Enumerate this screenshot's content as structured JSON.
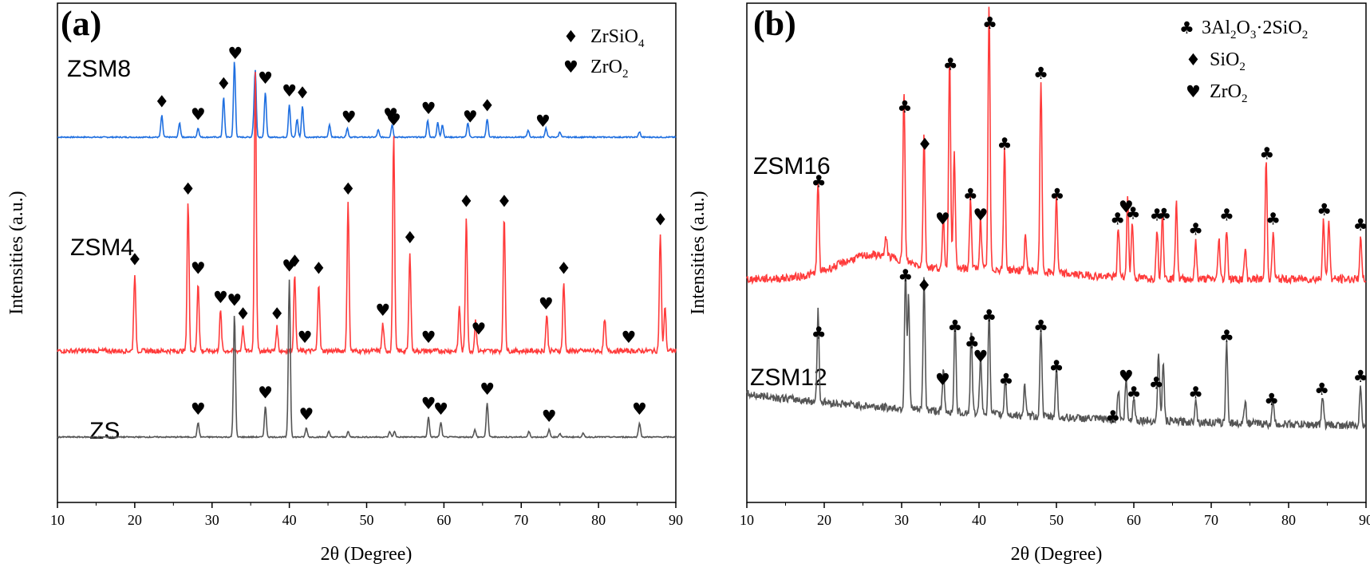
{
  "chart_data": [
    {
      "panel": "(a)",
      "type": "line",
      "xlabel": "2θ (Degree)",
      "ylabel": "Intensities (a.u.)",
      "xlim": [
        10,
        90
      ],
      "xticks": [
        "10",
        "20",
        "30",
        "40",
        "50",
        "60",
        "70",
        "80",
        "90"
      ],
      "legend": [
        {
          "marker": "♦",
          "label": "ZrSiO",
          "sub": "4"
        },
        {
          "marker": "♥",
          "label": "ZrO",
          "sub": "2"
        }
      ],
      "series": [
        {
          "name": "ZSM8",
          "color": "#1f6fe0",
          "baseline": 0.3,
          "peaks": [
            [
              23.5,
              0.12
            ],
            [
              25.8,
              0.08
            ],
            [
              28.2,
              0.05
            ],
            [
              31.5,
              0.22
            ],
            [
              32.9,
              0.42
            ],
            [
              35.4,
              0.07
            ],
            [
              35.6,
              0.35
            ],
            [
              36.9,
              0.25
            ],
            [
              40.0,
              0.18
            ],
            [
              41.0,
              0.1
            ],
            [
              41.7,
              0.17
            ],
            [
              45.2,
              0.07
            ],
            [
              47.5,
              0.05
            ],
            [
              51.5,
              0.04
            ],
            [
              53.3,
              0.07
            ],
            [
              57.9,
              0.09
            ],
            [
              59.2,
              0.08
            ],
            [
              59.8,
              0.07
            ],
            [
              63.1,
              0.08
            ],
            [
              65.6,
              0.1
            ],
            [
              70.9,
              0.04
            ],
            [
              73.2,
              0.05
            ],
            [
              75.0,
              0.03
            ],
            [
              85.3,
              0.03
            ]
          ],
          "markers": [
            [
              23.5,
              "♦",
              0.83
            ],
            [
              28.2,
              "♥",
              0.79
            ],
            [
              31.5,
              "♦",
              0.86
            ],
            [
              33.0,
              "♥",
              0.97
            ],
            [
              36.9,
              "♥",
              0.88
            ],
            [
              40.0,
              "♥",
              0.8
            ],
            [
              41.7,
              "♦",
              0.86
            ],
            [
              47.7,
              "♥",
              0.78
            ],
            [
              53.1,
              "♥",
              0.75
            ],
            [
              58.0,
              "♥",
              0.84
            ],
            [
              63.4,
              "♥",
              0.84
            ],
            [
              65.6,
              "♦",
              0.83
            ],
            [
              72.8,
              "♥",
              0.81
            ]
          ]
        },
        {
          "name": "ZSM4",
          "color": "#ff3b3b",
          "baseline": 1.3,
          "peaks": [
            [
              20.0,
              0.43
            ],
            [
              26.9,
              0.82
            ],
            [
              28.2,
              0.38
            ],
            [
              31.1,
              0.22
            ],
            [
              34.0,
              0.13
            ],
            [
              35.6,
              1.55
            ],
            [
              38.4,
              0.13
            ],
            [
              40.7,
              0.42
            ],
            [
              43.8,
              0.38
            ],
            [
              47.6,
              0.82
            ],
            [
              52.1,
              0.15
            ],
            [
              53.5,
              1.2
            ],
            [
              55.6,
              0.55
            ],
            [
              62.0,
              0.25
            ],
            [
              62.9,
              0.75
            ],
            [
              64.1,
              0.17
            ],
            [
              67.8,
              0.75
            ],
            [
              73.3,
              0.2
            ],
            [
              75.5,
              0.38
            ],
            [
              80.8,
              0.18
            ],
            [
              88.0,
              0.65
            ],
            [
              88.6,
              0.25
            ]
          ],
          "markers": [
            [
              20.0,
              "♦",
              0.81
            ],
            [
              26.9,
              "♦",
              0.74
            ],
            [
              28.2,
              "♥",
              0.8
            ],
            [
              31.1,
              "♥",
              0.82
            ],
            [
              34.0,
              "♦",
              0.83
            ],
            [
              38.4,
              "♦",
              0.83
            ],
            [
              40.7,
              "♦",
              0.81
            ],
            [
              42.0,
              "♥",
              0.79
            ],
            [
              43.8,
              "♦",
              0.82
            ],
            [
              47.6,
              "♦",
              0.75
            ],
            [
              52.1,
              "♥",
              0.78
            ],
            [
              53.5,
              "♥",
              0.77
            ],
            [
              55.6,
              "♦",
              0.81
            ],
            [
              58.0,
              "♥",
              0.77
            ],
            [
              62.9,
              "♦",
              0.79
            ],
            [
              64.5,
              "♥",
              0.79
            ],
            [
              67.8,
              "♦",
              0.77
            ],
            [
              73.2,
              "♥",
              0.75
            ],
            [
              75.5,
              "♦",
              0.81
            ],
            [
              83.9,
              "♥",
              0.8
            ],
            [
              88.0,
              "♦",
              0.82
            ]
          ]
        },
        {
          "name": "ZS",
          "color": "#555555",
          "baseline": 2.06,
          "peaks": [
            [
              28.2,
              0.08
            ],
            [
              32.9,
              0.68
            ],
            [
              36.9,
              0.17
            ],
            [
              40.0,
              0.87
            ],
            [
              42.2,
              0.05
            ],
            [
              45.1,
              0.03
            ],
            [
              47.6,
              0.03
            ],
            [
              53.0,
              0.03
            ],
            [
              53.6,
              0.03
            ],
            [
              58.0,
              0.11
            ],
            [
              59.6,
              0.08
            ],
            [
              64.0,
              0.04
            ],
            [
              65.6,
              0.19
            ],
            [
              71.0,
              0.03
            ],
            [
              73.6,
              0.04
            ],
            [
              75.0,
              0.02
            ],
            [
              78.0,
              0.02
            ],
            [
              85.3,
              0.08
            ]
          ],
          "markers": [
            [
              28.2,
              "♥",
              0.71
            ],
            [
              32.9,
              "♥",
              0.8
            ],
            [
              36.9,
              "♥",
              0.77
            ],
            [
              40.0,
              "♥",
              0.76
            ],
            [
              42.2,
              "♥",
              0.68
            ],
            [
              58.0,
              "♥",
              0.75
            ],
            [
              59.6,
              "♥",
              0.71
            ],
            [
              65.6,
              "♥",
              0.83
            ],
            [
              73.6,
              "♥",
              0.72
            ],
            [
              85.3,
              "♥",
              0.8
            ]
          ]
        }
      ]
    },
    {
      "panel": "(b)",
      "type": "line",
      "xlabel": "2θ (Degree)",
      "ylabel": "Intensities (a.u.)",
      "xlim": [
        10,
        90
      ],
      "xticks": [
        "10",
        "20",
        "30",
        "40",
        "50",
        "60",
        "70",
        "80",
        "90"
      ],
      "legend": [
        {
          "marker": "♣",
          "label": "3Al",
          "sub": "2",
          "label2": "O",
          "sub2": "3",
          "label3": "·2SiO",
          "sub3": "2"
        },
        {
          "marker": "♦",
          "label": "SiO",
          "sub": "2"
        },
        {
          "marker": "♥",
          "label": "ZrO",
          "sub": "2"
        }
      ],
      "series": [
        {
          "name": "ZSM16",
          "color": "#ff3b3b",
          "baseline": 0.86,
          "peaks": [
            [
              19.2,
              0.45
            ],
            [
              28.0,
              0.1
            ],
            [
              30.3,
              0.85
            ],
            [
              32.9,
              0.65
            ],
            [
              35.4,
              0.25
            ],
            [
              36.2,
              1.08
            ],
            [
              36.8,
              0.6
            ],
            [
              38.9,
              0.35
            ],
            [
              40.2,
              0.25
            ],
            [
              41.3,
              1.3
            ],
            [
              43.3,
              0.6
            ],
            [
              46.0,
              0.18
            ],
            [
              48.0,
              0.95
            ],
            [
              50.0,
              0.38
            ],
            [
              58.0,
              0.25
            ],
            [
              59.2,
              0.4
            ],
            [
              59.8,
              0.28
            ],
            [
              63.0,
              0.25
            ],
            [
              63.7,
              0.35
            ],
            [
              65.5,
              0.4
            ],
            [
              68.0,
              0.18
            ],
            [
              71.0,
              0.2
            ],
            [
              72.0,
              0.25
            ],
            [
              74.4,
              0.15
            ],
            [
              77.1,
              0.6
            ],
            [
              78.0,
              0.23
            ],
            [
              84.5,
              0.3
            ],
            [
              85.2,
              0.3
            ],
            [
              89.3,
              0.2
            ]
          ],
          "markers": [
            [
              19.3,
              "♣",
              0.76
            ],
            [
              30.4,
              "♣",
              0.8
            ],
            [
              33.0,
              "♦",
              0.76
            ],
            [
              35.3,
              "♥",
              0.75
            ],
            [
              36.3,
              "♣",
              0.78
            ],
            [
              38.9,
              "♣",
              0.75
            ],
            [
              40.2,
              "♥",
              0.74
            ],
            [
              41.4,
              "♣",
              0.78
            ],
            [
              43.3,
              "♣",
              0.75
            ],
            [
              48.0,
              "♣",
              0.75
            ],
            [
              50.1,
              "♣",
              0.8
            ],
            [
              57.9,
              "♣",
              0.82
            ],
            [
              59.0,
              "♥",
              0.73
            ],
            [
              59.9,
              "♣",
              0.8
            ],
            [
              63.0,
              "♣",
              0.83
            ],
            [
              63.9,
              "♣",
              0.79
            ],
            [
              68.0,
              "♣",
              0.84
            ],
            [
              72.0,
              "♣",
              0.82
            ],
            [
              77.2,
              "♣",
              0.73
            ],
            [
              78.0,
              "♣",
              0.82
            ],
            [
              84.6,
              "♣",
              0.8
            ],
            [
              89.3,
              "♣",
              0.82
            ]
          ]
        },
        {
          "name": "ZSM12",
          "color": "#555555",
          "baseline": 1.9,
          "peaks": [
            [
              19.2,
              0.45
            ],
            [
              30.5,
              0.7
            ],
            [
              30.9,
              0.55
            ],
            [
              32.9,
              0.65
            ],
            [
              35.4,
              0.2
            ],
            [
              36.9,
              0.45
            ],
            [
              39.0,
              0.4
            ],
            [
              40.2,
              0.3
            ],
            [
              41.3,
              0.5
            ],
            [
              43.4,
              0.2
            ],
            [
              45.9,
              0.15
            ],
            [
              48.0,
              0.45
            ],
            [
              50.0,
              0.25
            ],
            [
              58.0,
              0.15
            ],
            [
              59.0,
              0.2
            ],
            [
              60.0,
              0.12
            ],
            [
              63.2,
              0.35
            ],
            [
              63.8,
              0.3
            ],
            [
              68.0,
              0.12
            ],
            [
              72.0,
              0.4
            ],
            [
              74.4,
              0.12
            ],
            [
              78.0,
              0.12
            ],
            [
              84.4,
              0.15
            ],
            [
              89.3,
              0.2
            ]
          ],
          "markers": [
            [
              19.3,
              "♣",
              0.79
            ],
            [
              30.5,
              "♣",
              0.81
            ],
            [
              32.9,
              "♦",
              0.82
            ],
            [
              35.3,
              "♥",
              0.73
            ],
            [
              36.9,
              "♣",
              0.78
            ],
            [
              39.1,
              "♣",
              0.76
            ],
            [
              40.2,
              "♥",
              0.74
            ],
            [
              41.3,
              "♣",
              0.79
            ],
            [
              43.5,
              "♣",
              0.72
            ],
            [
              48.0,
              "♣",
              0.78
            ],
            [
              50.0,
              "♣",
              0.77
            ],
            [
              57.3,
              "♣",
              0.79
            ],
            [
              59.0,
              "♥",
              0.79
            ],
            [
              60.0,
              "♣",
              0.77
            ],
            [
              62.9,
              "♣",
              0.76
            ],
            [
              68.0,
              "♣",
              0.82
            ],
            [
              72.0,
              "♣",
              0.79
            ],
            [
              77.8,
              "♣",
              0.82
            ],
            [
              84.3,
              "♣",
              0.82
            ],
            [
              89.3,
              "♣",
              0.82
            ]
          ]
        }
      ]
    }
  ]
}
